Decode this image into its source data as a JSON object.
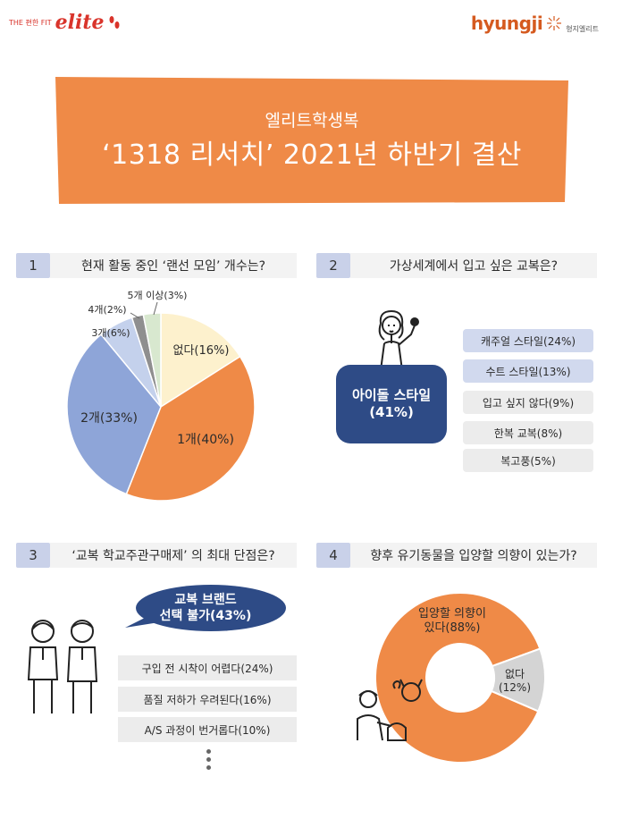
{
  "header": {
    "logo_left_small": "THE 편한 FIT",
    "logo_left_brand": "elite",
    "logo_right_brand": "hyungji",
    "logo_right_sub": "형지엘리트"
  },
  "banner": {
    "subtitle": "엘리트학생복",
    "title": "‘1318 리서치’ 2021년 하반기 결산",
    "color": "#ef8a47"
  },
  "questions": [
    {
      "num": "1",
      "text": "현재 활동 중인 ‘랜선 모임’ 개수는?"
    },
    {
      "num": "2",
      "text": "가상세계에서 입고 싶은 교복은?"
    },
    {
      "num": "3",
      "text": "‘교복 학교주관구매제’ 의 최대 단점은?"
    },
    {
      "num": "4",
      "text": "향후 유기동물을 입양할 의향이 있는가?"
    }
  ],
  "q2": {
    "top_answer_line1": "아이돌 스타일",
    "top_answer_line2": "(41%)",
    "others": [
      "캐주얼 스타일(24%)",
      "수트 스타일(13%)",
      "입고 싶지 않다(9%)",
      "한복 교복(8%)",
      "복고풍(5%)"
    ]
  },
  "q3": {
    "top_line1": "교복 브랜드",
    "top_line2": "선택 불가(43%)",
    "others": [
      "구입 전 시착이 어렵다(24%)",
      "품질 저하가 우려된다(16%)",
      "A/S 과정이 번거롭다(10%)"
    ]
  },
  "chart_data": [
    {
      "type": "pie",
      "categories": [
        "없다",
        "1개",
        "2개",
        "3개",
        "4개",
        "5개 이상"
      ],
      "values": [
        16,
        40,
        33,
        6,
        2,
        3
      ],
      "labels": [
        "없다(16%)",
        "1개(40%)",
        "2개(33%)",
        "3개(6%)",
        "4개(2%)",
        "5개 이상(3%)"
      ],
      "colors": [
        "#fdf1cd",
        "#ef8a47",
        "#8ea5d8",
        "#c4d1ec",
        "#8f8f8f",
        "#d8e8cf"
      ]
    },
    {
      "type": "pie",
      "donut": true,
      "categories": [
        "입양할 의향이 있다",
        "없다"
      ],
      "values": [
        88,
        12
      ],
      "labels": [
        "입양할 의향이\n있다(88%)",
        "없다\n(12%)"
      ],
      "colors": [
        "#ef8a47",
        "#d4d4d4"
      ]
    }
  ]
}
